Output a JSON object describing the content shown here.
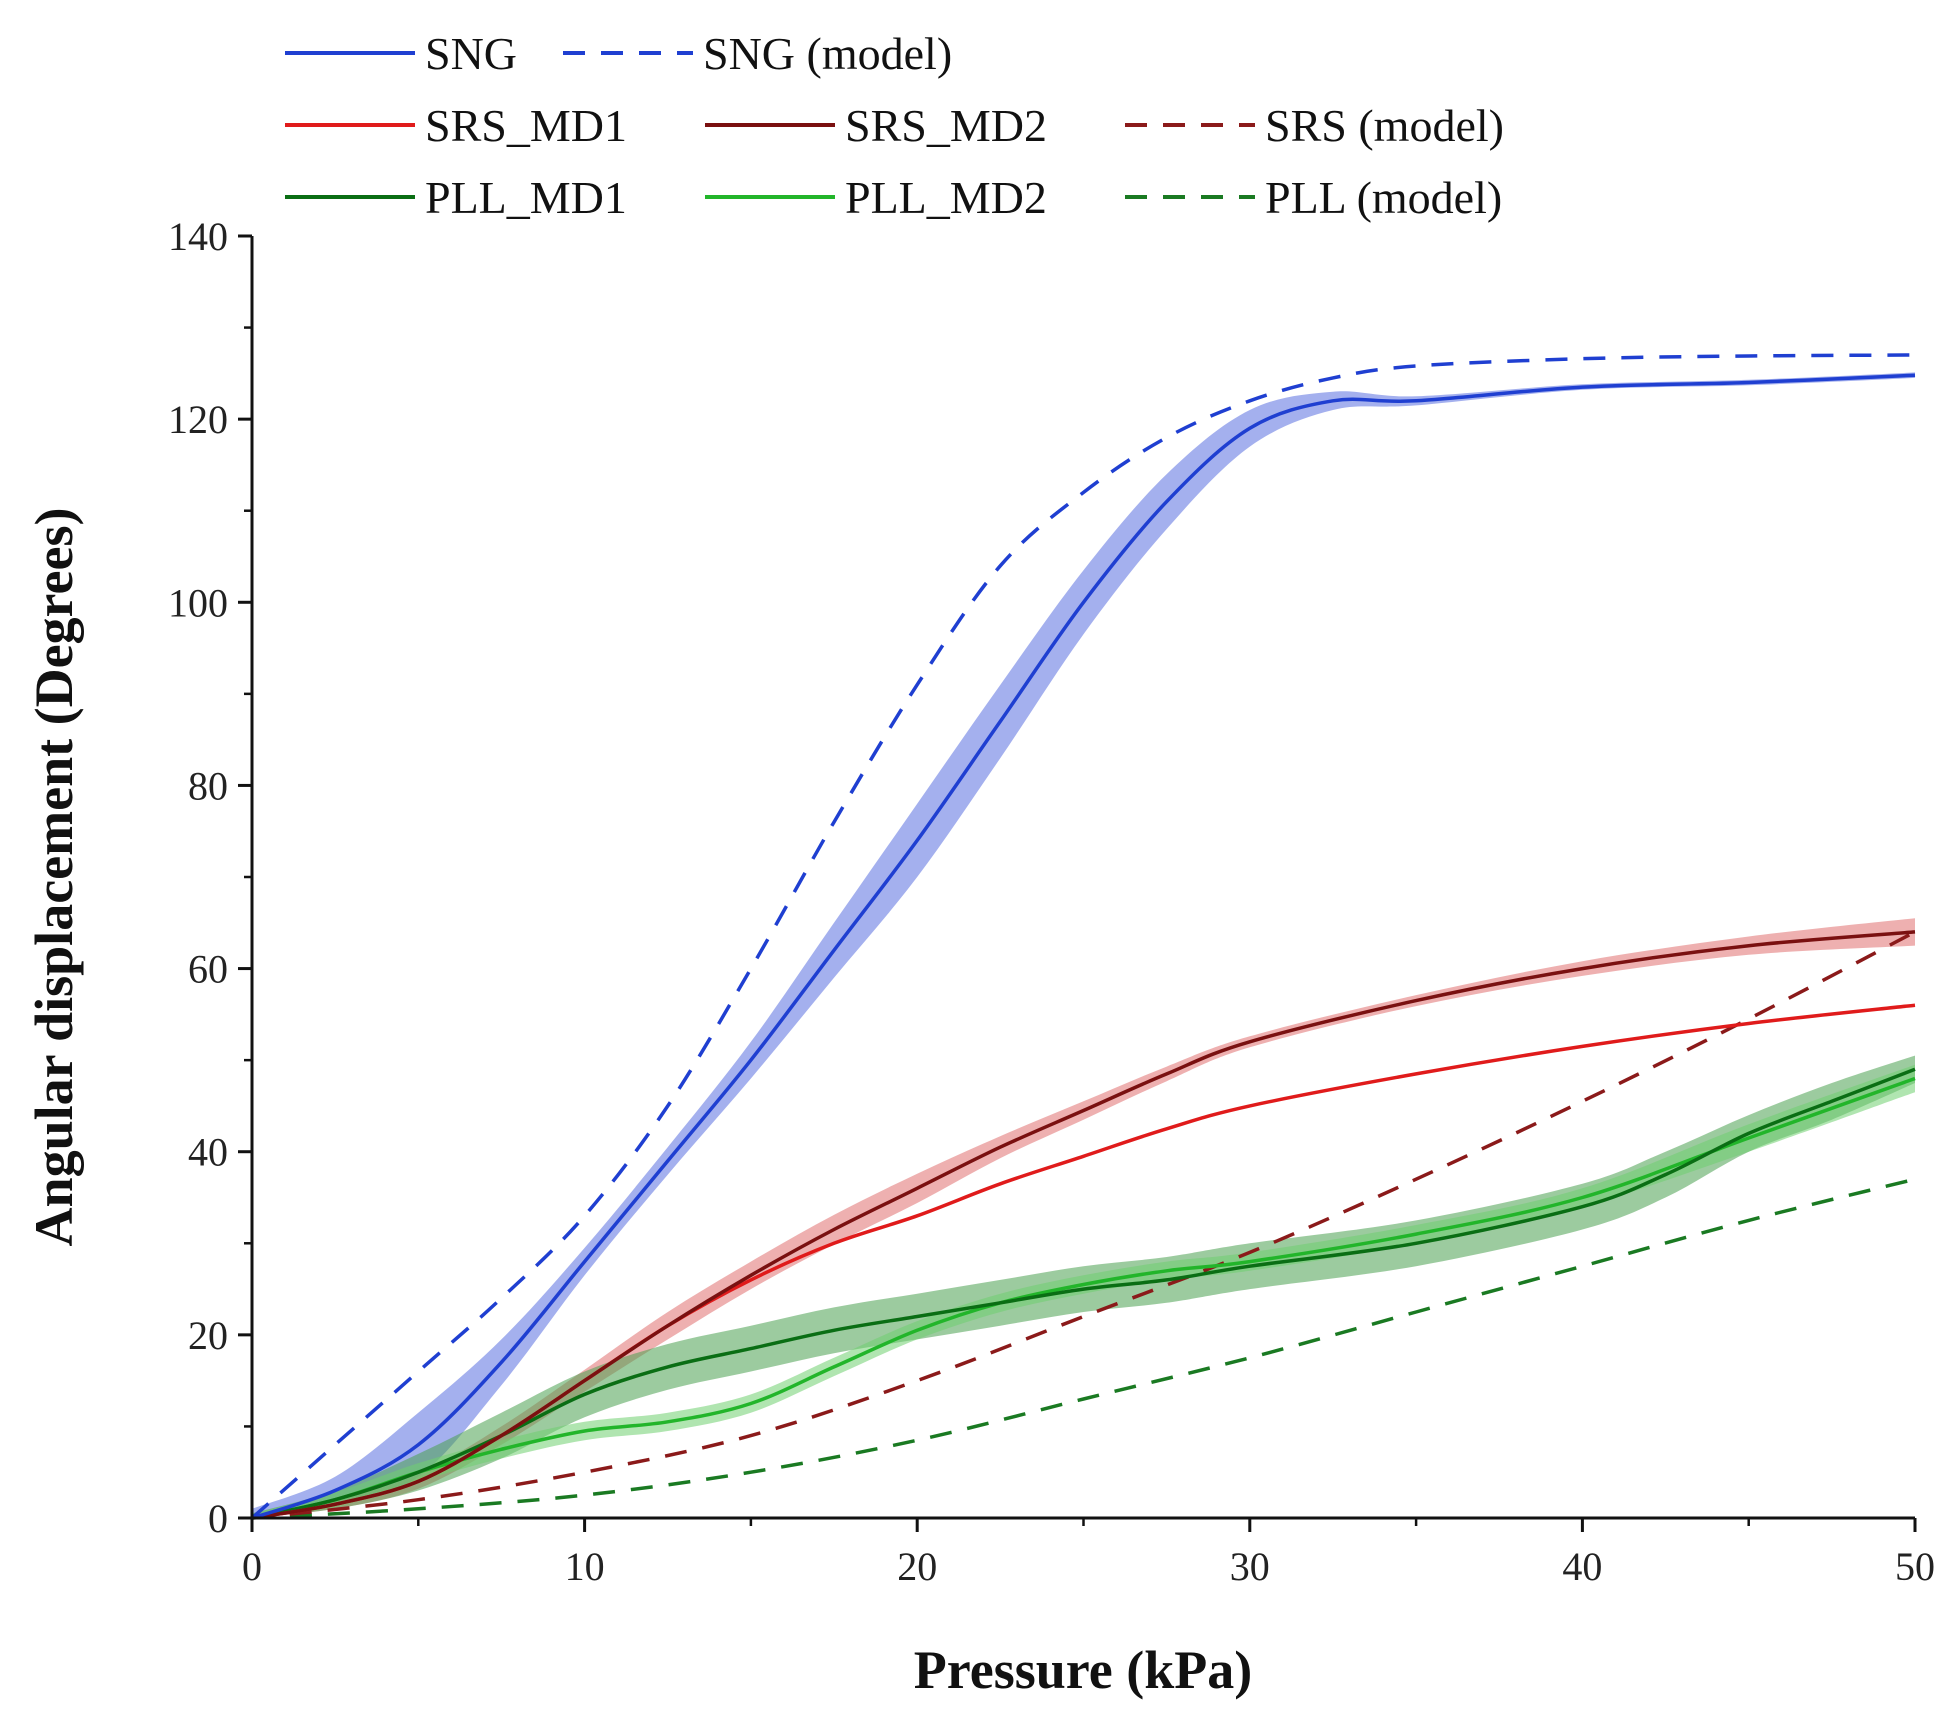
{
  "chart_data": {
    "type": "line",
    "title": "",
    "xlabel": "Pressure (kPa)",
    "ylabel": "Angular displacement (Degrees)",
    "xlim": [
      0,
      50
    ],
    "ylim": [
      0,
      140
    ],
    "xticks": [
      0,
      10,
      20,
      30,
      40,
      50
    ],
    "yticks": [
      0,
      20,
      40,
      60,
      80,
      100,
      120,
      140
    ],
    "grid": false,
    "legend_position": "top",
    "series": [
      {
        "name": "SNG",
        "color": "#1f3fd1",
        "style": "solid",
        "band_color": "#5a6fe0",
        "x": [
          0,
          2.5,
          5,
          7.5,
          10,
          12.5,
          15,
          17.5,
          20,
          22.5,
          25,
          27.5,
          30,
          32.5,
          35,
          40,
          45,
          50
        ],
        "y": [
          0,
          3,
          8,
          17,
          28,
          39,
          50,
          62,
          74,
          87,
          100,
          111,
          119,
          122,
          122,
          123.5,
          124,
          124.8
        ],
        "band": [
          1,
          1.5,
          3.5,
          2.5,
          1.5,
          1.5,
          2,
          3,
          4,
          4,
          3.5,
          3,
          2,
          1,
          0.5,
          0.3,
          0.3,
          0.3
        ]
      },
      {
        "name": "SNG (model)",
        "color": "#1f3fd1",
        "style": "dashed",
        "x": [
          0,
          2.5,
          5,
          7.5,
          10,
          12.5,
          15,
          17.5,
          20,
          22.5,
          25,
          27.5,
          30,
          32.5,
          35,
          40,
          45,
          50
        ],
        "y": [
          0,
          8,
          16,
          24,
          33,
          45,
          60,
          76,
          91,
          104,
          112,
          118,
          122,
          124.5,
          125.8,
          126.6,
          126.9,
          127
        ]
      },
      {
        "name": "SRS_MD1",
        "color": "#e01b1b",
        "style": "solid",
        "x": [
          0,
          2.5,
          5,
          7.5,
          10,
          12.5,
          15,
          17.5,
          20,
          22.5,
          25,
          27.5,
          30,
          35,
          40,
          45,
          50
        ],
        "y": [
          0,
          1.5,
          4,
          9,
          15,
          21,
          26,
          30,
          33,
          36.5,
          39.5,
          42.5,
          45,
          48.5,
          51.5,
          54,
          56
        ]
      },
      {
        "name": "SRS_MD2",
        "color": "#7a1010",
        "style": "solid",
        "band_color": "#e07070",
        "x": [
          0,
          2.5,
          5,
          7.5,
          10,
          12.5,
          15,
          17.5,
          20,
          22.5,
          25,
          27.5,
          30,
          35,
          40,
          45,
          50
        ],
        "y": [
          0,
          1.5,
          4,
          9,
          15,
          21,
          26.5,
          31.5,
          36,
          40.5,
          44.5,
          48.5,
          52,
          56.5,
          60,
          62.5,
          64
        ],
        "band": [
          0.3,
          0.5,
          0.8,
          1,
          1.2,
          1.5,
          1.5,
          1.6,
          1.6,
          1.2,
          1,
          0.8,
          0.6,
          0.6,
          0.8,
          1,
          1.5
        ]
      },
      {
        "name": "SRS (model)",
        "color": "#8b1a1a",
        "style": "dashed",
        "x": [
          0,
          5,
          10,
          15,
          20,
          25,
          30,
          35,
          40,
          45,
          50
        ],
        "y": [
          0,
          2,
          5,
          9,
          15,
          22,
          29,
          37,
          45.5,
          54.5,
          64
        ]
      },
      {
        "name": "PLL_MD1",
        "color": "#0a6e14",
        "style": "solid",
        "band_color": "#4aa050",
        "x": [
          0,
          2.5,
          5,
          7.5,
          10,
          12.5,
          15,
          17.5,
          20,
          22.5,
          25,
          27.5,
          30,
          35,
          40,
          42.5,
          45,
          47.5,
          50
        ],
        "y": [
          0,
          2,
          5,
          9,
          13.5,
          16.5,
          18.5,
          20.5,
          22,
          23.5,
          25,
          26,
          27.5,
          30,
          34,
          37.5,
          42,
          45.5,
          49
        ],
        "band": [
          0.5,
          1,
          2,
          2.5,
          2.5,
          2.5,
          2.5,
          2.5,
          2.5,
          2.5,
          2.5,
          2.5,
          2.5,
          2.5,
          2.5,
          2.5,
          2,
          2,
          1.5
        ]
      },
      {
        "name": "PLL_MD2",
        "color": "#22b52a",
        "style": "solid",
        "band_color": "#6fd070",
        "x": [
          0,
          2.5,
          5,
          7.5,
          10,
          12.5,
          15,
          17.5,
          20,
          22.5,
          25,
          27.5,
          30,
          35,
          40,
          45,
          50
        ],
        "y": [
          0,
          2,
          5,
          7.5,
          9.5,
          10.5,
          12.5,
          16.5,
          20.5,
          23.5,
          25.5,
          27,
          28,
          31,
          35,
          41.5,
          48
        ],
        "band": [
          0.5,
          0.8,
          1,
          1,
          1,
          1,
          1,
          1,
          1,
          1,
          1,
          1,
          1,
          1,
          1,
          1.5,
          1.5
        ]
      },
      {
        "name": "PLL (model)",
        "color": "#1a7a22",
        "style": "dashed",
        "x": [
          0,
          5,
          10,
          15,
          20,
          25,
          30,
          35,
          40,
          45,
          50
        ],
        "y": [
          0,
          1,
          2.5,
          5,
          8.5,
          13,
          17.5,
          22.5,
          27.5,
          32.5,
          37
        ]
      }
    ],
    "legend": {
      "rows": [
        [
          "SNG",
          "SNG (model)"
        ],
        [
          "SRS_MD1",
          "SRS_MD2",
          "SRS (model)"
        ],
        [
          "PLL_MD1",
          "PLL_MD2",
          "PLL (model)"
        ]
      ]
    }
  }
}
